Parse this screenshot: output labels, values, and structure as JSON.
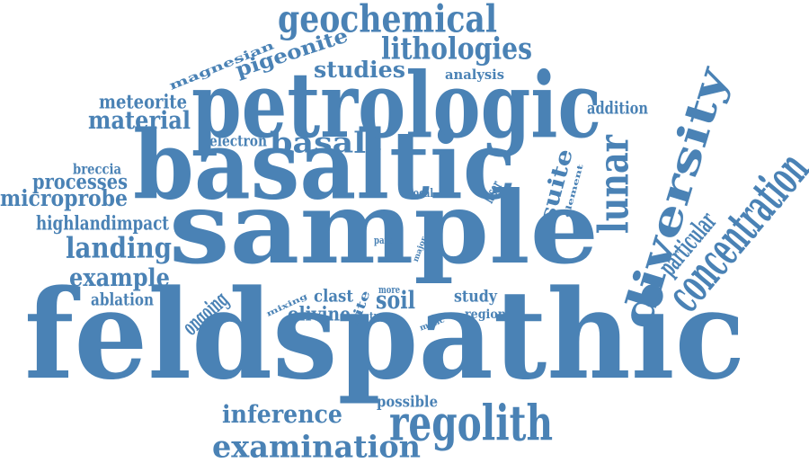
{
  "colors": {
    "text": "#4a82b5",
    "background": "#ffffff"
  },
  "words": [
    {
      "id": "feldspathic",
      "text": "feldspathic",
      "weight": 100
    },
    {
      "id": "sample",
      "text": "sample",
      "weight": 80
    },
    {
      "id": "basaltic",
      "text": "basaltic",
      "weight": 62
    },
    {
      "id": "petrologic",
      "text": "petrologic",
      "weight": 56
    },
    {
      "id": "diversity",
      "text": "diversity",
      "weight": 45
    },
    {
      "id": "regolith",
      "text": "regolith",
      "weight": 34
    },
    {
      "id": "lunar",
      "text": "lunar",
      "weight": 34
    },
    {
      "id": "suite",
      "text": "suite",
      "weight": 25
    },
    {
      "id": "concentration",
      "text": "concentration",
      "weight": 22
    },
    {
      "id": "geochemical",
      "text": "geochemical",
      "weight": 22
    },
    {
      "id": "examination",
      "text": "examination",
      "weight": 22
    },
    {
      "id": "basalt",
      "text": "basalt",
      "weight": 20
    },
    {
      "id": "lithologies",
      "text": "lithologies",
      "weight": 20
    },
    {
      "id": "inference",
      "text": "inference",
      "weight": 18
    },
    {
      "id": "pigeonite",
      "text": "pigeonite",
      "weight": 17
    },
    {
      "id": "landing",
      "text": "landing",
      "weight": 17
    },
    {
      "id": "material",
      "text": "material",
      "weight": 16
    },
    {
      "id": "studies",
      "text": "studies",
      "weight": 16
    },
    {
      "id": "example",
      "text": "example",
      "weight": 16
    },
    {
      "id": "soil",
      "text": "soil",
      "weight": 16
    },
    {
      "id": "processes",
      "text": "processes",
      "weight": 14
    },
    {
      "id": "microprobe",
      "text": "microprobe",
      "weight": 14
    },
    {
      "id": "magnesian",
      "text": "magnesian",
      "weight": 14
    },
    {
      "id": "meteorite",
      "text": "meteorite",
      "weight": 13
    },
    {
      "id": "olivine",
      "text": "olivine",
      "weight": 12
    },
    {
      "id": "clast",
      "text": "clast",
      "weight": 12
    },
    {
      "id": "site",
      "text": "site",
      "weight": 12
    },
    {
      "id": "electron",
      "text": "electron",
      "weight": 11
    },
    {
      "id": "highlandimpact",
      "text": "highlandimpact",
      "weight": 11
    },
    {
      "id": "addition",
      "text": "addition",
      "weight": 11
    },
    {
      "id": "study",
      "text": "study",
      "weight": 11
    },
    {
      "id": "possible",
      "text": "possible",
      "weight": 11
    },
    {
      "id": "particular",
      "text": "particular",
      "weight": 11
    },
    {
      "id": "ablation",
      "text": "ablation",
      "weight": 10
    },
    {
      "id": "ongoing",
      "text": "ongoing",
      "weight": 10
    },
    {
      "id": "breccia",
      "text": "breccia",
      "weight": 9
    },
    {
      "id": "analysis",
      "text": "analysis",
      "weight": 9
    },
    {
      "id": "region",
      "text": "region",
      "weight": 9
    },
    {
      "id": "element",
      "text": "element",
      "weight": 8
    },
    {
      "id": "mixing",
      "text": "mixing",
      "weight": 8
    },
    {
      "id": "laser",
      "text": "laser",
      "weight": 7
    },
    {
      "id": "local",
      "text": "local",
      "weight": 6
    },
    {
      "id": "more",
      "text": "more",
      "weight": 6
    },
    {
      "id": "trace",
      "text": "trace",
      "weight": 6
    },
    {
      "id": "major",
      "text": "major",
      "weight": 6
    },
    {
      "id": "mafic",
      "text": "mafic",
      "weight": 6
    },
    {
      "id": "part",
      "text": "part",
      "weight": 6
    }
  ]
}
